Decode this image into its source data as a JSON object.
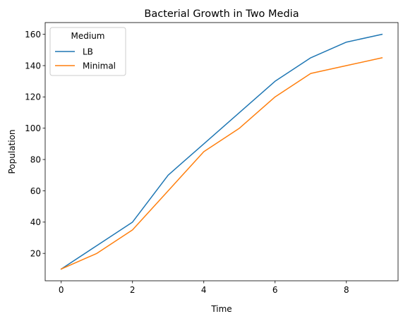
{
  "chart_data": {
    "type": "line",
    "title": "Bacterial Growth in Two Media",
    "xlabel": "Time",
    "ylabel": "Population",
    "x": [
      0,
      1,
      2,
      3,
      4,
      5,
      6,
      7,
      8,
      9
    ],
    "series": [
      {
        "name": "LB",
        "color": "#1f77b4",
        "values": [
          10,
          25,
          40,
          70,
          90,
          110,
          130,
          145,
          155,
          160
        ]
      },
      {
        "name": "Minimal",
        "color": "#ff7f0e",
        "values": [
          10,
          20,
          35,
          60,
          85,
          100,
          120,
          135,
          140,
          145
        ]
      }
    ],
    "xlim": [
      -0.45,
      9.45
    ],
    "ylim": [
      2.5,
      167.5
    ],
    "xticks": [
      0,
      2,
      4,
      6,
      8
    ],
    "yticks": [
      20,
      40,
      60,
      80,
      100,
      120,
      140,
      160
    ],
    "legend": {
      "title": "Medium",
      "position": "top-left"
    },
    "grid": false
  }
}
